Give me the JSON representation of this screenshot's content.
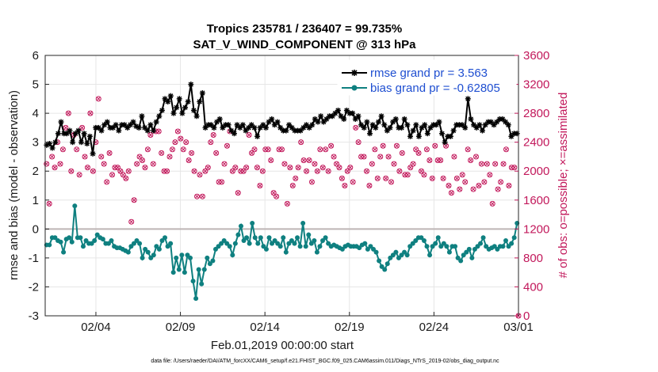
{
  "chart_data": {
    "type": "line",
    "title": "Tropics 235781 / 236407 = 99.735%",
    "subtitle": "SAT_V_WIND_COMPONENT @ 313 hPa",
    "xlabel": "Feb.01,2019 00:00:00 start",
    "ylabel": "rmse and bias (model - observation)",
    "y2label": "# of obs: o=possible; ×=assimilated",
    "xlim": [
      0,
      28
    ],
    "ylim": [
      -3,
      6
    ],
    "y2lim": [
      0,
      3600
    ],
    "x_ticks": [
      {
        "x": 3,
        "label": "02/04"
      },
      {
        "x": 8,
        "label": "02/09"
      },
      {
        "x": 13,
        "label": "02/14"
      },
      {
        "x": 18,
        "label": "02/19"
      },
      {
        "x": 23,
        "label": "02/24"
      },
      {
        "x": 28,
        "label": "03/01"
      }
    ],
    "y_ticks": [
      -3,
      -2,
      -1,
      0,
      1,
      2,
      3,
      4,
      5,
      6
    ],
    "y2_ticks": [
      0,
      400,
      800,
      1200,
      1600,
      2000,
      2400,
      2800,
      3200,
      3600
    ],
    "legend": [
      {
        "label": "rmse grand pr = 3.563",
        "color": "#000000"
      },
      {
        "label": "bias grand pr = -0.62805",
        "color": "#0f8080"
      }
    ],
    "series": [
      {
        "name": "rmse",
        "color": "#000000",
        "axis": "left",
        "values": [
          2.9,
          2.95,
          2.8,
          3.0,
          3.3,
          3.7,
          3.3,
          3.3,
          3.4,
          3.0,
          3.3,
          3.4,
          3.0,
          3.3,
          2.95,
          3.2,
          2.6,
          3.5,
          3.5,
          3.4,
          3.6,
          3.7,
          3.5,
          3.5,
          3.6,
          3.4,
          3.6,
          3.6,
          3.5,
          3.6,
          3.7,
          3.55,
          3.5,
          3.9,
          3.5,
          3.4,
          3.6,
          3.4,
          3.7,
          3.9,
          4.1,
          4.5,
          4.4,
          4.6,
          4.0,
          4.2,
          4.5,
          4.0,
          4.2,
          4.4,
          5.0,
          4.1,
          3.9,
          4.4,
          4.7,
          3.5,
          3.6,
          3.6,
          3.5,
          3.7,
          3.8,
          3.5,
          3.6,
          3.6,
          3.4,
          3.3,
          3.6,
          3.5,
          3.6,
          3.4,
          3.5,
          3.6,
          3.5,
          3.2,
          3.5,
          3.6,
          3.5,
          3.7,
          3.8,
          3.6,
          3.7,
          3.5,
          3.4,
          3.4,
          3.6,
          3.5,
          3.4,
          3.4,
          3.4,
          3.5,
          3.6,
          3.5,
          3.6,
          3.8,
          3.7,
          3.9,
          3.7,
          3.8,
          3.9,
          3.9,
          4.0,
          4.1,
          3.9,
          3.8,
          4.1,
          4.0,
          4.0,
          3.8,
          3.9,
          3.6,
          3.5,
          3.7,
          3.3,
          3.6,
          3.5,
          3.7,
          3.9,
          3.6,
          3.4,
          3.5,
          3.7,
          3.8,
          3.5,
          3.5,
          3.8,
          3.6,
          3.2,
          3.4,
          3.6,
          3.2,
          3.5,
          3.6,
          3.3,
          3.5,
          3.6,
          3.6,
          3.7,
          3.3,
          3.0,
          3.2,
          3.2,
          3.4,
          3.6,
          3.6,
          3.6,
          3.5,
          4.5,
          3.8,
          3.6,
          3.5,
          3.6,
          3.4,
          3.6,
          3.7,
          3.7,
          3.6,
          3.7,
          3.8,
          3.8,
          3.7,
          3.6,
          3.2,
          3.3,
          3.3
        ]
      },
      {
        "name": "bias",
        "color": "#0f8080",
        "axis": "left",
        "values": [
          -0.55,
          -0.55,
          -0.3,
          -0.3,
          -0.4,
          -0.45,
          -0.8,
          -0.35,
          -0.3,
          -0.45,
          0.8,
          -0.3,
          -0.3,
          -0.6,
          -0.4,
          -0.5,
          -0.5,
          -0.4,
          -0.2,
          -0.3,
          -0.35,
          -0.5,
          -0.5,
          -0.4,
          -0.6,
          -0.65,
          -0.65,
          -0.7,
          -0.75,
          -0.8,
          -0.6,
          -0.5,
          -0.4,
          -0.5,
          -1.0,
          -0.7,
          -0.8,
          -1.0,
          -0.9,
          -0.6,
          -0.7,
          -0.4,
          -0.3,
          -0.6,
          -0.5,
          -1.5,
          -1.0,
          -1.4,
          -0.9,
          -1.5,
          -0.9,
          -1.0,
          -1.8,
          -2.4,
          -1.4,
          -1.9,
          -1.4,
          -1.0,
          -1.2,
          -1.1,
          -0.7,
          -0.6,
          -0.5,
          -0.4,
          -0.5,
          -0.6,
          -0.9,
          -0.5,
          -0.2,
          0.1,
          -0.4,
          -0.3,
          -0.5,
          0.2,
          -0.3,
          -0.5,
          -0.3,
          -0.6,
          -0.7,
          -0.3,
          -0.5,
          -0.4,
          -0.5,
          -0.6,
          -0.3,
          -0.8,
          -0.5,
          -0.4,
          -0.5,
          -0.3,
          -0.6,
          0.2,
          -0.6,
          -0.2,
          -0.5,
          -0.4,
          -0.8,
          -0.6,
          -0.4,
          -0.3,
          -0.5,
          -0.6,
          -0.55,
          -0.6,
          -0.65,
          -0.7,
          -0.6,
          -0.55,
          -0.6,
          -0.6,
          -0.6,
          -0.65,
          -0.55,
          -0.5,
          -0.7,
          -0.6,
          -0.7,
          -0.8,
          -1.1,
          -1.3,
          -1.4,
          -1.2,
          -1.0,
          -0.9,
          -0.8,
          -1.0,
          -0.9,
          -0.8,
          -0.9,
          -0.6,
          -0.5,
          -0.4,
          -0.3,
          -0.3,
          -0.4,
          -0.6,
          -0.9,
          -0.6,
          -0.5,
          -0.3,
          -0.6,
          -0.5,
          -0.6,
          -0.8,
          -0.6,
          -0.6,
          -1.0,
          -1.1,
          -0.9,
          -0.8,
          -0.7,
          -1.0,
          -0.7,
          -0.6,
          -0.5,
          -0.3,
          -0.6,
          -0.7,
          -0.65,
          -0.6,
          -0.7,
          -0.6,
          -0.6,
          -0.4,
          -0.6,
          -0.5,
          -0.3,
          0.2
        ]
      },
      {
        "name": "obs possible",
        "color": "#c2185b",
        "axis": "right",
        "values": [
          2100,
          1550,
          2200,
          2050,
          2400,
          2100,
          2300,
          2600,
          2800,
          2000,
          2500,
          2300,
          1950,
          2600,
          2200,
          2050,
          2800,
          2000,
          2400,
          3000,
          2200,
          2100,
          1850,
          2250,
          1950,
          2050,
          2050,
          2000,
          1950,
          1900,
          2000,
          1300,
          1600,
          2100,
          2200,
          2150,
          2050,
          2300,
          2500,
          2100,
          2550,
          2550,
          2250,
          2000,
          2000,
          2200,
          2300,
          2400,
          2550,
          2450,
          2300,
          2400,
          2150,
          2250,
          2000,
          1650,
          1950,
          1650,
          2000,
          2050,
          2400,
          2500,
          2250,
          1850,
          1850,
          2100,
          2350,
          2550,
          2000,
          2050,
          1700,
          2000,
          2000,
          2050,
          2500,
          2250,
          2300,
          2050,
          1800,
          2000,
          2300,
          2300,
          2150,
          1700,
          1650,
          2300,
          2300,
          2100,
          1550,
          2050,
          1800,
          1900,
          2050,
          2400,
          2150,
          2000,
          2150,
          1850,
          2100,
          2000,
          2300,
          2050,
          2300,
          2000,
          2350,
          2200,
          2100,
          2050,
          1900,
          1800,
          2000,
          2050,
          1850,
          2600,
          2400,
          2200,
          2200,
          2000,
          1800,
          2100,
          2300,
          1900,
          2200,
          2350,
          1900,
          2200,
          1850,
          2100,
          2350,
          2000,
          2250,
          1950,
          1950,
          2050,
          2100,
          2300,
          2250,
          2000,
          1950,
          2300,
          2150,
          1900,
          2350,
          2150,
          2150,
          1900,
          2350,
          1800,
          1700,
          2200,
          1900,
          1750,
          1950,
          1850,
          2300,
          2150,
          1750,
          2200,
          1800,
          2100,
          1850,
          2100,
          1950,
          1550,
          2100,
          1750,
          1850,
          2100,
          2300,
          1800,
          2050,
          2050,
          0
        ]
      }
    ]
  },
  "footnote": "data file: /Users/raeder/DAI/ATM_forcXX/CAM6_setup/f.e21.FHIST_BGC.f09_025.CAM6assim.011/Diags_NTrS_2019-02/obs_diag_output.nc"
}
